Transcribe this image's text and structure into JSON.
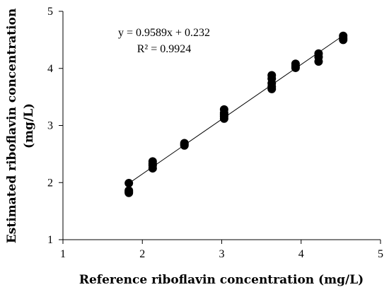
{
  "chart_data": {
    "type": "scatter",
    "title": "",
    "xlabel": "Reference riboflavin concentration (mg/L)",
    "ylabel_line1": "Estimated riboflavin concentration",
    "ylabel_line2": "(mg/L)",
    "xlim": [
      1,
      5
    ],
    "ylim": [
      1,
      5
    ],
    "xticks": [
      "1",
      "2",
      "3",
      "4",
      "5"
    ],
    "yticks": [
      "1",
      "2",
      "3",
      "4",
      "5"
    ],
    "grid": false,
    "legend": "none",
    "marker_color": "#000000",
    "series": [
      {
        "x": [
          1.83,
          1.83,
          1.83,
          1.83,
          2.13,
          2.13,
          2.13,
          2.13,
          2.53,
          2.53,
          2.53,
          3.03,
          3.03,
          3.03,
          3.03,
          3.03,
          3.63,
          3.63,
          3.63,
          3.63,
          3.63,
          3.93,
          3.93,
          3.93,
          4.22,
          4.22,
          4.22,
          4.53,
          4.53,
          4.53
        ],
        "y": [
          1.99,
          1.86,
          1.82,
          1.84,
          2.37,
          2.3,
          2.25,
          2.33,
          2.69,
          2.65,
          2.67,
          3.28,
          3.22,
          3.16,
          3.12,
          3.19,
          3.88,
          3.82,
          3.74,
          3.68,
          3.64,
          4.08,
          4.04,
          4.01,
          4.26,
          4.2,
          4.12,
          4.57,
          4.53,
          4.5
        ]
      }
    ],
    "trendline": {
      "slope": 0.9589,
      "intercept": 0.232,
      "x_range": [
        1.83,
        4.53
      ]
    },
    "equation_text": "y = 0.9589x + 0.232",
    "r2_text": "R² = 0.9924"
  }
}
